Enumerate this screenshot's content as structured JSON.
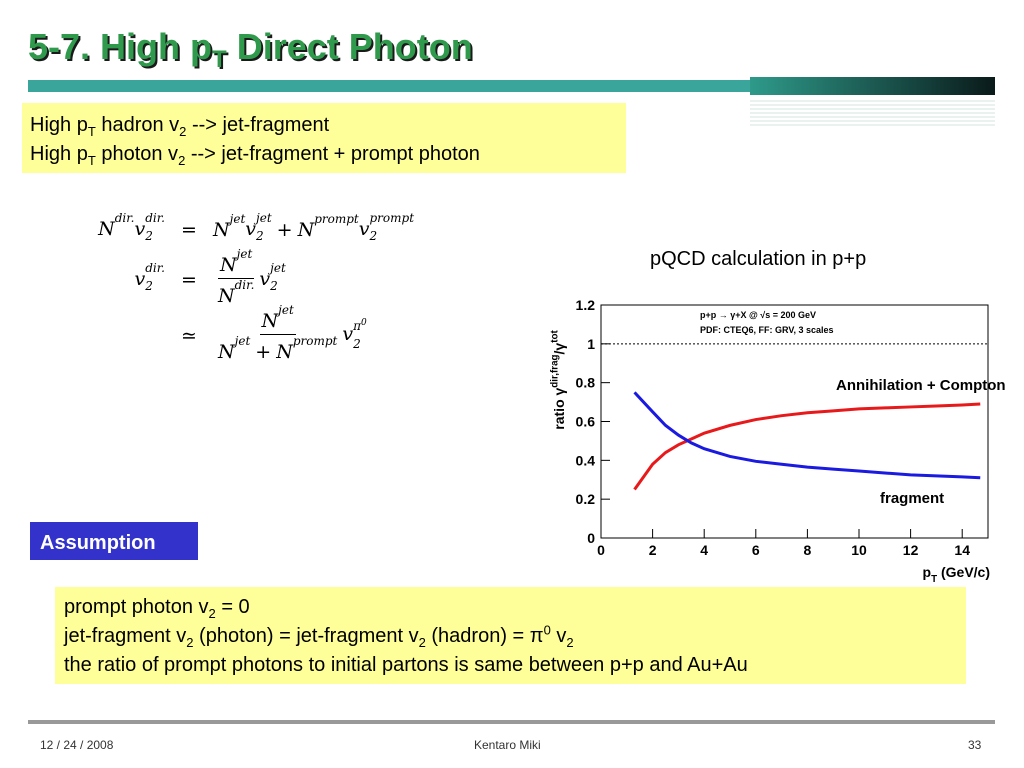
{
  "header": {
    "title": [
      {
        "t": "5-7. High p"
      },
      {
        "sub": "T"
      },
      {
        "t": " Direct Photon"
      }
    ]
  },
  "intro_box": {
    "lines": [
      [
        {
          "t": "High p"
        },
        {
          "sub": "T"
        },
        {
          "t": " hadron v"
        },
        {
          "sub": "2"
        },
        {
          "t": " --> jet-fragment"
        }
      ],
      [
        {
          "t": "High p"
        },
        {
          "sub": "T"
        },
        {
          "t": " photon v"
        },
        {
          "sub": "2"
        },
        {
          "t": " --> jet-fragment + prompt photon"
        }
      ]
    ]
  },
  "equations": [
    {
      "lhs": [
        {
          "b": "N",
          "sup": "dir."
        },
        {
          "b": "v",
          "sub": "2",
          "sup": "dir."
        }
      ],
      "rel": "=",
      "rhs": [
        {
          "b": "N",
          "sup": "jet"
        },
        {
          "b": "v",
          "sub": "2",
          "sup": "jet"
        },
        {
          "op": "+"
        },
        {
          "b": "N",
          "sup": "prompt"
        },
        {
          "b": "v",
          "sub": "2",
          "sup": "prompt"
        }
      ]
    },
    {
      "lhs": [
        {
          "b": "v",
          "sub": "2",
          "sup": "dir."
        }
      ],
      "rel": "=",
      "rhs": [
        {
          "frac": {
            "num": [
              {
                "b": "N",
                "sup": "jet"
              }
            ],
            "den": [
              {
                "b": "N",
                "sup": "dir."
              }
            ]
          }
        },
        {
          "b": "v",
          "sub": "2",
          "sup": "jet"
        }
      ]
    },
    {
      "rel": "≃",
      "rhs": [
        {
          "frac": {
            "num": [
              {
                "b": "N",
                "sup": "jet"
              }
            ],
            "den": [
              {
                "b": "N",
                "sup": "jet"
              },
              {
                "op": "+"
              },
              {
                "b": "N",
                "sup": "prompt"
              }
            ]
          }
        },
        {
          "b": "v",
          "sub": "2",
          "sup": "π",
          "sup2": "0"
        }
      ]
    }
  ],
  "chart_heading": "pQCD calculation in p+p",
  "chart_data": {
    "type": "line",
    "notes": [
      [
        {
          "t": "p+p → γ+X @ √s = 200 GeV"
        }
      ],
      [
        {
          "t": "PDF: CTEQ6, FF: GRV, 3 scales"
        }
      ]
    ],
    "x_label": [
      {
        "t": "p"
      },
      {
        "sub": "T"
      },
      {
        "t": " (GeV/c)"
      }
    ],
    "y_label": [
      {
        "t": "ratio γ"
      },
      {
        "sup": "dir,frag"
      },
      {
        "t": "/γ"
      },
      {
        "sup": "tot"
      }
    ],
    "x": [
      1.3,
      2,
      2.5,
      3,
      3.5,
      4,
      5,
      6,
      7,
      8,
      9,
      10,
      11,
      12,
      13,
      14,
      14.7
    ],
    "series": [
      {
        "name": "Annihilation + Compton",
        "color": "#e8191a",
        "values": [
          0.25,
          0.38,
          0.44,
          0.48,
          0.51,
          0.54,
          0.58,
          0.61,
          0.63,
          0.645,
          0.655,
          0.665,
          0.67,
          0.675,
          0.68,
          0.685,
          0.69
        ]
      },
      {
        "name": "fragment",
        "color": "#1a1ae0",
        "values": [
          0.75,
          0.65,
          0.58,
          0.53,
          0.49,
          0.46,
          0.42,
          0.395,
          0.38,
          0.365,
          0.355,
          0.345,
          0.335,
          0.325,
          0.32,
          0.315,
          0.31
        ]
      }
    ],
    "reference_line": 1,
    "xlim": [
      0,
      15
    ],
    "xticks": [
      0,
      2,
      4,
      6,
      8,
      10,
      12,
      14
    ],
    "ylim": [
      0,
      1.2
    ],
    "yticks": [
      0,
      0.2,
      0.4,
      0.6,
      0.8,
      1,
      1.2
    ]
  },
  "assumption_label": "Assumption",
  "assumption_box": {
    "lines": [
      [
        {
          "t": "prompt photon v"
        },
        {
          "sub": "2"
        },
        {
          "t": " = 0"
        }
      ],
      [
        {
          "t": "jet-fragment v"
        },
        {
          "sub": "2"
        },
        {
          "t": " (photon) = jet-fragment v"
        },
        {
          "sub": "2"
        },
        {
          "t": " (hadron) = π"
        },
        {
          "sup": "0"
        },
        {
          "t": " v"
        },
        {
          "sub": "2"
        }
      ],
      [
        {
          "t": "the ratio of prompt photons to initial partons is same between p+p and Au+Au"
        }
      ]
    ]
  },
  "footer": {
    "date": "12 / 24 / 2008",
    "author": "Kentaro Miki",
    "page": "33"
  }
}
